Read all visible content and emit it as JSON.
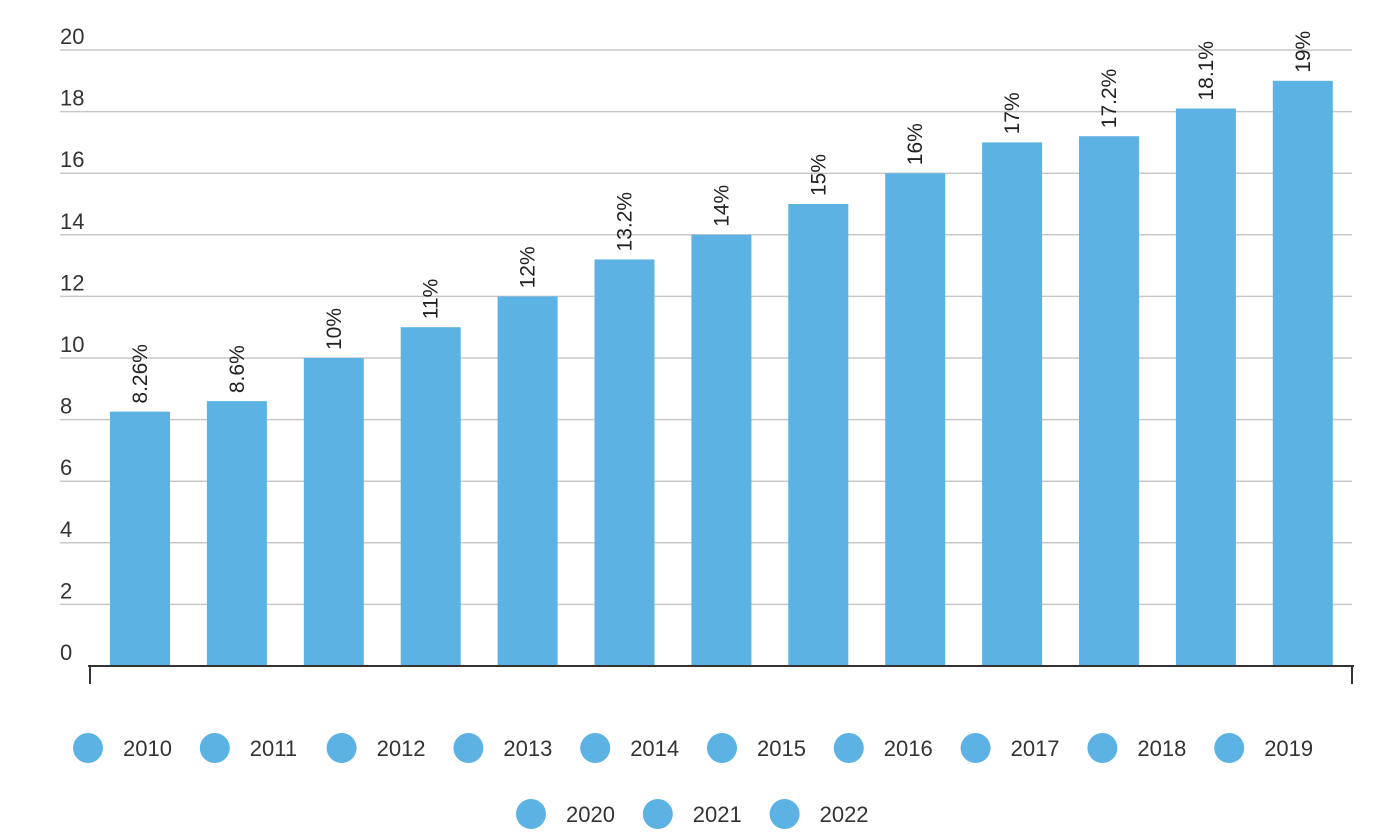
{
  "chart_data": {
    "type": "bar",
    "title": "",
    "xlabel": "",
    "ylabel": "",
    "categories": [
      "2010",
      "2011",
      "2012",
      "2013",
      "2014",
      "2015",
      "2016",
      "2017",
      "2018",
      "2019",
      "2020",
      "2021",
      "2022"
    ],
    "values": [
      8.26,
      8.6,
      10,
      11,
      12,
      13.2,
      14,
      15,
      16,
      17,
      17.2,
      18.1,
      19
    ],
    "data_labels": [
      "8.26%",
      "8.6%",
      "10%",
      "11%",
      "12%",
      "13.2%",
      "14%",
      "15%",
      "16%",
      "17%",
      "17.2%",
      "18.1%",
      "19%"
    ],
    "ylim": [
      0,
      20
    ],
    "yticks": [
      0,
      2,
      4,
      6,
      8,
      10,
      12,
      14,
      16,
      18,
      20
    ],
    "ytick_labels": [
      "0",
      "2",
      "4",
      "6",
      "8",
      "10",
      "12",
      "14",
      "16",
      "18",
      "20"
    ],
    "grid": true,
    "legend_position": "bottom",
    "legend_entries": [
      "2010",
      "2011",
      "2012",
      "2013",
      "2014",
      "2015",
      "2016",
      "2017",
      "2018",
      "2019",
      "2020",
      "2021",
      "2022"
    ],
    "colors": {
      "bar": "#5cb3e3",
      "grid": "#c8c8c8",
      "axis": "#333333"
    }
  }
}
